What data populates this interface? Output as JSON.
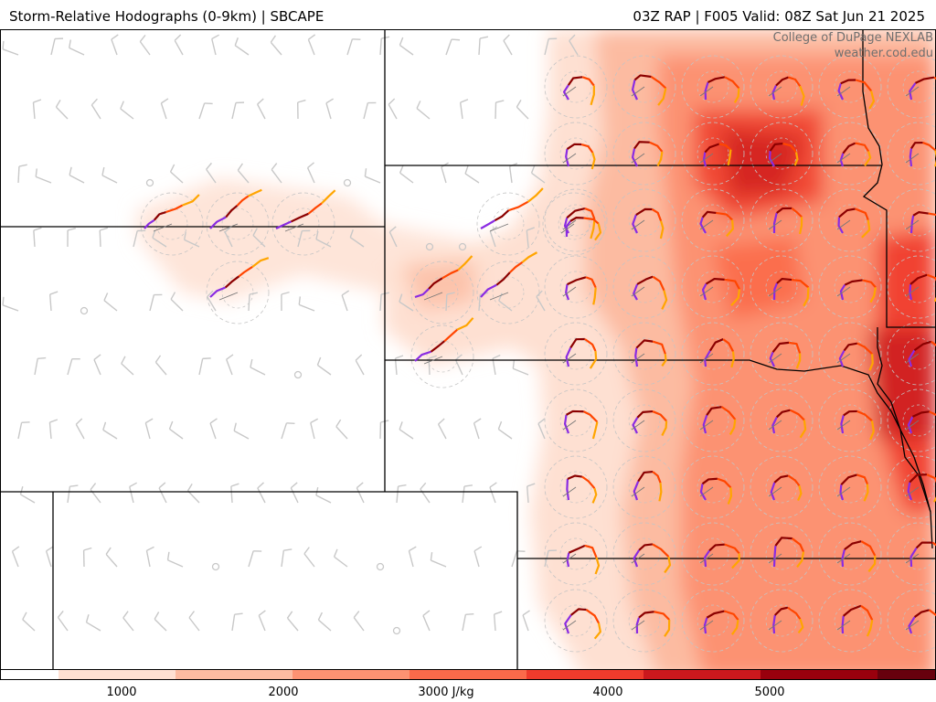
{
  "header": {
    "left_title": "Storm-Relative Hodographs (0-9km) | SBCAPE",
    "right_title": "03Z RAP | F005 Valid: 08Z Sat Jun 21 2025"
  },
  "credit": {
    "line1": "College of DuPage NEXLAB",
    "line2": "weather.cod.edu"
  },
  "colorbar": {
    "unit": "J/kg",
    "labels": [
      "1000",
      "2000",
      "3000 J/kg",
      "4000",
      "5000"
    ],
    "colors": [
      "#fff5f0",
      "#fee0d2",
      "#fcbba1",
      "#fc9272",
      "#fb6a4a",
      "#ef3b2c",
      "#cb181d",
      "#99000d",
      "#67000d"
    ]
  },
  "field": {
    "name": "SBCAPE",
    "high_region": "east",
    "colors": {
      "border": "#000000",
      "barb": "#c8c8c8",
      "ring": "#c4c4c4"
    }
  },
  "hodograph": {
    "layer_colors": [
      "#8a2be2",
      "#8b0000",
      "#ff4500",
      "#ffa500"
    ]
  }
}
